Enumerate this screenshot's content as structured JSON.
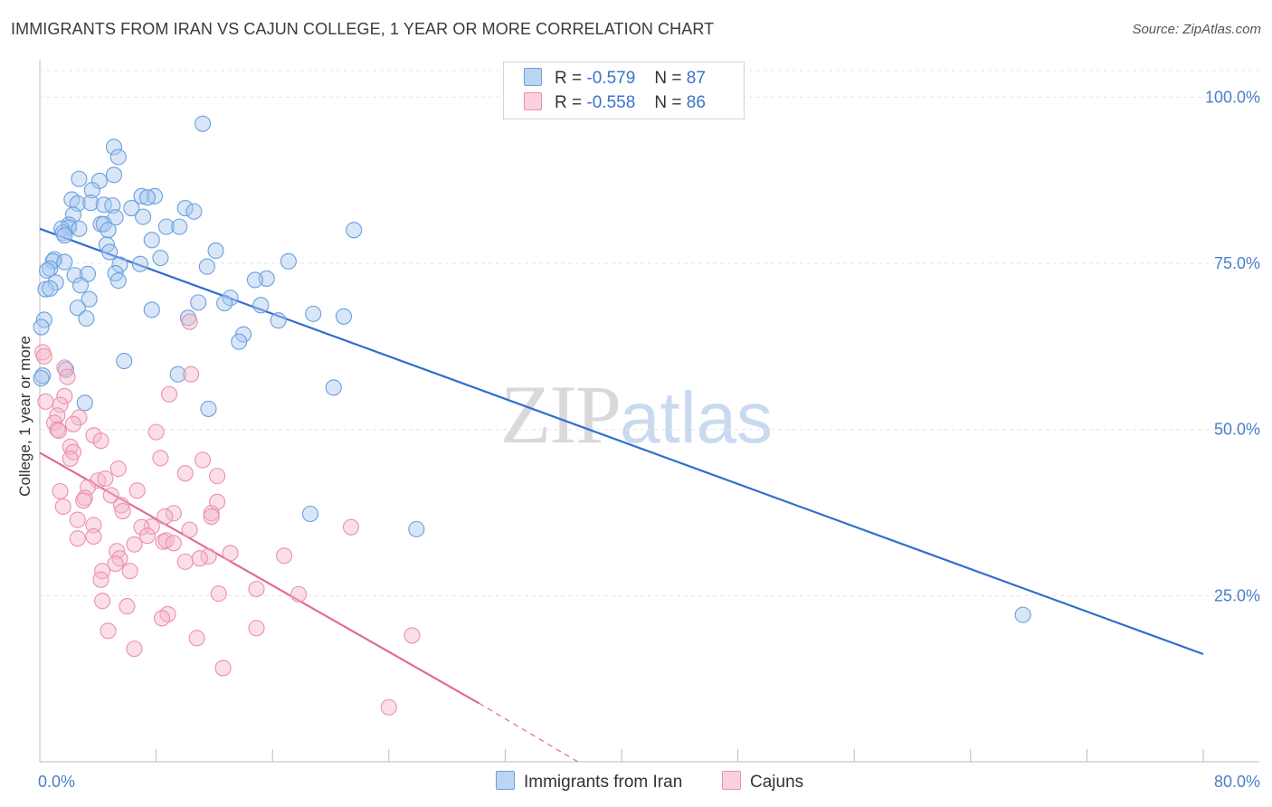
{
  "title": "IMMIGRANTS FROM IRAN VS CAJUN COLLEGE, 1 YEAR OR MORE CORRELATION CHART",
  "source": "Source: ZipAtlas.com",
  "watermark": {
    "zip": "ZIP",
    "atlas": "atlas"
  },
  "legend_top": [
    {
      "r_label": "R =",
      "r_value": "-0.579",
      "n_label": "N =",
      "n_value": "87",
      "color": "#a8c8f0"
    },
    {
      "r_label": "R =",
      "r_value": "-0.558",
      "n_label": "N =",
      "n_value": "86",
      "color": "#f5b8cb"
    }
  ],
  "legend_bottom": [
    {
      "label": "Immigrants from Iran",
      "color": "#a8c8f0"
    },
    {
      "label": "Cajuns",
      "color": "#f5b8cb"
    }
  ],
  "chart_data": {
    "type": "scatter",
    "xlabel": "",
    "ylabel": "College, 1 year or more",
    "xlim": [
      0,
      80
    ],
    "ylim": [
      0,
      104
    ],
    "x_tick_labels": [
      {
        "value": 0,
        "label": "0.0%"
      },
      {
        "value": 80,
        "label": "80.0%"
      }
    ],
    "y_tick_labels": [
      {
        "value": 25,
        "label": "25.0%"
      },
      {
        "value": 50,
        "label": "50.0%"
      },
      {
        "value": 75,
        "label": "75.0%"
      },
      {
        "value": 100,
        "label": "100.0%"
      }
    ],
    "x_minor_ticks": [
      0,
      8,
      16,
      24,
      32,
      40,
      48,
      56,
      64,
      72,
      80
    ],
    "grid": true,
    "legend_position": "top-center",
    "series": [
      {
        "name": "Immigrants from Iran",
        "color": "#6aa0e0",
        "fill": "#a8c8f0",
        "line_color": "#2f6fcf",
        "trend": {
          "x": [
            0,
            80
          ],
          "y": [
            80.2,
            16.2
          ]
        },
        "points": [
          [
            11.2,
            96.0
          ],
          [
            5.1,
            92.5
          ],
          [
            5.4,
            91.0
          ],
          [
            2.7,
            87.7
          ],
          [
            5.1,
            88.3
          ],
          [
            4.1,
            87.4
          ],
          [
            3.6,
            86.0
          ],
          [
            7.0,
            85.1
          ],
          [
            7.9,
            85.1
          ],
          [
            7.4,
            84.9
          ],
          [
            2.2,
            84.6
          ],
          [
            2.6,
            84.0
          ],
          [
            3.5,
            84.1
          ],
          [
            4.4,
            83.8
          ],
          [
            5.0,
            83.7
          ],
          [
            6.3,
            83.3
          ],
          [
            10.0,
            83.3
          ],
          [
            10.6,
            82.8
          ],
          [
            2.3,
            82.3
          ],
          [
            5.2,
            81.9
          ],
          [
            7.1,
            82.0
          ],
          [
            4.2,
            80.9
          ],
          [
            4.4,
            80.9
          ],
          [
            2.0,
            80.8
          ],
          [
            2.0,
            80.4
          ],
          [
            1.5,
            80.2
          ],
          [
            2.7,
            80.2
          ],
          [
            8.7,
            80.5
          ],
          [
            9.6,
            80.5
          ],
          [
            21.6,
            80.0
          ],
          [
            1.6,
            79.6
          ],
          [
            4.7,
            80.0
          ],
          [
            1.7,
            79.2
          ],
          [
            7.7,
            78.5
          ],
          [
            4.6,
            77.8
          ],
          [
            4.8,
            76.7
          ],
          [
            12.1,
            76.9
          ],
          [
            8.3,
            75.8
          ],
          [
            1.0,
            75.6
          ],
          [
            0.9,
            75.3
          ],
          [
            1.7,
            75.2
          ],
          [
            17.1,
            75.3
          ],
          [
            5.5,
            74.8
          ],
          [
            6.9,
            74.9
          ],
          [
            11.5,
            74.5
          ],
          [
            0.7,
            74.2
          ],
          [
            0.5,
            73.9
          ],
          [
            2.4,
            73.2
          ],
          [
            5.2,
            73.5
          ],
          [
            3.3,
            73.4
          ],
          [
            15.6,
            72.7
          ],
          [
            14.8,
            72.5
          ],
          [
            1.1,
            72.1
          ],
          [
            2.8,
            71.7
          ],
          [
            5.4,
            72.4
          ],
          [
            0.4,
            71.1
          ],
          [
            0.7,
            71.2
          ],
          [
            3.4,
            69.6
          ],
          [
            13.1,
            69.8
          ],
          [
            10.9,
            69.1
          ],
          [
            12.7,
            69.0
          ],
          [
            15.2,
            68.7
          ],
          [
            7.7,
            68.0
          ],
          [
            2.6,
            68.3
          ],
          [
            18.8,
            67.4
          ],
          [
            20.9,
            67.0
          ],
          [
            10.2,
            66.8
          ],
          [
            3.2,
            66.7
          ],
          [
            16.4,
            66.4
          ],
          [
            0.3,
            66.5
          ],
          [
            0.1,
            65.4
          ],
          [
            14.0,
            64.3
          ],
          [
            13.7,
            63.2
          ],
          [
            5.8,
            60.3
          ],
          [
            1.8,
            59.0
          ],
          [
            9.5,
            58.3
          ],
          [
            0.2,
            58.1
          ],
          [
            0.1,
            57.7
          ],
          [
            20.2,
            56.3
          ],
          [
            3.1,
            54.0
          ],
          [
            11.6,
            53.1
          ],
          [
            18.6,
            37.3
          ],
          [
            25.9,
            35.0
          ],
          [
            67.6,
            22.1
          ]
        ]
      },
      {
        "name": "Cajuns",
        "color": "#ee8fab",
        "fill": "#f5b8cb",
        "line_color": "#e06b95",
        "trend": {
          "x": [
            0,
            30.2
          ],
          "y": [
            46.5,
            8.8
          ]
        },
        "trend_dashed": {
          "x": [
            30.2,
            37.0
          ],
          "y": [
            8.8,
            0
          ]
        },
        "points": [
          [
            0.2,
            61.6
          ],
          [
            0.3,
            61.0
          ],
          [
            10.3,
            66.2
          ],
          [
            1.7,
            59.3
          ],
          [
            10.4,
            58.3
          ],
          [
            1.9,
            57.9
          ],
          [
            8.9,
            55.3
          ],
          [
            1.7,
            55.0
          ],
          [
            1.4,
            53.7
          ],
          [
            0.4,
            54.2
          ],
          [
            1.2,
            52.1
          ],
          [
            2.7,
            51.8
          ],
          [
            1.0,
            51.0
          ],
          [
            2.3,
            50.8
          ],
          [
            1.2,
            50.0
          ],
          [
            8.0,
            49.6
          ],
          [
            3.7,
            49.1
          ],
          [
            1.3,
            49.8
          ],
          [
            4.2,
            48.3
          ],
          [
            2.1,
            47.4
          ],
          [
            2.3,
            46.6
          ],
          [
            8.3,
            45.7
          ],
          [
            11.2,
            45.4
          ],
          [
            2.1,
            45.6
          ],
          [
            5.4,
            44.1
          ],
          [
            10.0,
            43.4
          ],
          [
            12.2,
            43.0
          ],
          [
            4.0,
            42.3
          ],
          [
            4.5,
            42.6
          ],
          [
            3.3,
            41.3
          ],
          [
            6.7,
            40.8
          ],
          [
            1.4,
            40.7
          ],
          [
            4.9,
            40.1
          ],
          [
            3.1,
            39.7
          ],
          [
            3.0,
            39.3
          ],
          [
            12.2,
            39.1
          ],
          [
            1.6,
            38.4
          ],
          [
            5.6,
            38.6
          ],
          [
            5.7,
            37.7
          ],
          [
            9.2,
            37.4
          ],
          [
            11.8,
            37.4
          ],
          [
            8.6,
            36.9
          ],
          [
            11.8,
            36.9
          ],
          [
            2.6,
            36.4
          ],
          [
            7.7,
            35.4
          ],
          [
            3.7,
            35.6
          ],
          [
            10.3,
            34.9
          ],
          [
            21.4,
            35.3
          ],
          [
            7.0,
            35.3
          ],
          [
            7.4,
            34.0
          ],
          [
            3.7,
            33.9
          ],
          [
            2.6,
            33.6
          ],
          [
            8.5,
            33.1
          ],
          [
            8.7,
            33.3
          ],
          [
            9.2,
            32.9
          ],
          [
            6.5,
            32.7
          ],
          [
            5.3,
            31.7
          ],
          [
            13.1,
            31.4
          ],
          [
            16.8,
            31.0
          ],
          [
            11.6,
            30.9
          ],
          [
            11.0,
            30.6
          ],
          [
            5.5,
            30.6
          ],
          [
            10.0,
            30.1
          ],
          [
            5.2,
            29.8
          ],
          [
            4.3,
            28.7
          ],
          [
            6.2,
            28.7
          ],
          [
            4.2,
            27.4
          ],
          [
            14.9,
            26.0
          ],
          [
            12.3,
            25.3
          ],
          [
            17.8,
            25.2
          ],
          [
            4.3,
            24.2
          ],
          [
            6.0,
            23.4
          ],
          [
            8.8,
            22.2
          ],
          [
            8.4,
            21.6
          ],
          [
            14.9,
            20.1
          ],
          [
            4.7,
            19.7
          ],
          [
            25.6,
            19.0
          ],
          [
            10.8,
            18.6
          ],
          [
            6.5,
            17.0
          ],
          [
            12.6,
            14.1
          ],
          [
            24.0,
            8.2
          ]
        ]
      }
    ]
  }
}
